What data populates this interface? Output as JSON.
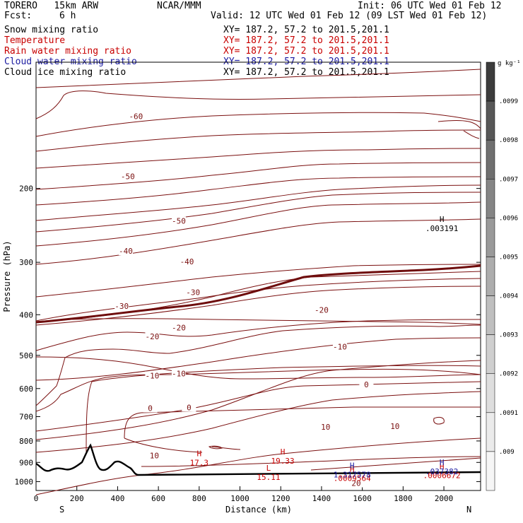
{
  "header": {
    "model": "TORERO   15km ARW",
    "org": "NCAR/MMM",
    "init": "Init: 06 UTC Wed 01 Feb 12",
    "fcst_label": "Fcst:",
    "fcst_value": "6 h",
    "valid": "Valid: 12 UTC Wed 01 Feb 12 (09 LST Wed 01 Feb 12)"
  },
  "fields": [
    {
      "name": "Snow mixing ratio",
      "xy": "XY= 187.2, 57.2 to 201.5,201.1",
      "color": "#000000"
    },
    {
      "name": "Temperature",
      "xy": "XY= 187.2, 57.2 to 201.5,201.1",
      "color": "#c80000"
    },
    {
      "name": "Rain water mixing ratio",
      "xy": "XY= 187.2, 57.2 to 201.5,201.1",
      "color": "#c80000"
    },
    {
      "name": "Cloud water mixing ratio",
      "xy": "XY= 187.2, 57.2 to 201.5,201.1",
      "color": "#1a1aa0"
    },
    {
      "name": "Cloud ice mixing ratio",
      "xy": "XY= 187.2, 57.2 to 201.5,201.1",
      "color": "#000000"
    }
  ],
  "chart_data": {
    "type": "contour-cross-section",
    "xlabel": "Distance (km)",
    "ylabel": "Pressure (hPa)",
    "xlim": [
      0,
      2180
    ],
    "ylim": [
      1050,
      100
    ],
    "x_ticks": [
      0,
      200,
      400,
      600,
      800,
      1000,
      1200,
      1400,
      1600,
      1800,
      2000
    ],
    "y_ticks": [
      200,
      300,
      400,
      500,
      600,
      700,
      800,
      900,
      1000
    ],
    "x_end_labels": {
      "left": "S",
      "right": "N"
    },
    "colorbar": {
      "units": "g kg⁻¹",
      "levels": [
        ".0099",
        ".0098",
        ".0097",
        ".0096",
        ".0095",
        ".0094",
        ".0093",
        ".0092",
        ".0091",
        ".009"
      ],
      "colors": [
        "#3c3c3c",
        "#575757",
        "#6f6f6f",
        "#858585",
        "#9a9a9a",
        "#adadad",
        "#bfbfbf",
        "#cfcfcf",
        "#dedede",
        "#ebebeb",
        "#f6f6f6"
      ]
    },
    "temperature_contour_labels": [
      "-60",
      "-50",
      "-50",
      "-40",
      "-40",
      "-30",
      "-30",
      "-20",
      "-20",
      "-20",
      "-10",
      "-10",
      "-10",
      "0",
      "0",
      "0",
      "10",
      "10",
      "10",
      "20"
    ],
    "contour_label_points": [
      {
        "text": "-60",
        "x": 490,
        "p": 135
      },
      {
        "text": "-50",
        "x": 700,
        "p": 240
      },
      {
        "text": "-50",
        "x": 450,
        "p": 188
      },
      {
        "text": "-40",
        "x": 440,
        "p": 283
      },
      {
        "text": "-40",
        "x": 740,
        "p": 300
      },
      {
        "text": "-30",
        "x": 420,
        "p": 383
      },
      {
        "text": "-30",
        "x": 770,
        "p": 355
      },
      {
        "text": "-20",
        "x": 570,
        "p": 452
      },
      {
        "text": "-20",
        "x": 700,
        "p": 431
      },
      {
        "text": "-20",
        "x": 1400,
        "p": 391
      },
      {
        "text": "-10",
        "x": 570,
        "p": 561
      },
      {
        "text": "-10",
        "x": 700,
        "p": 555
      },
      {
        "text": "-10",
        "x": 1490,
        "p": 479
      },
      {
        "text": "0",
        "x": 560,
        "p": 671
      },
      {
        "text": "0",
        "x": 750,
        "p": 668
      },
      {
        "text": "0",
        "x": 1620,
        "p": 589
      },
      {
        "text": "10",
        "x": 1420,
        "p": 743
      },
      {
        "text": "10",
        "x": 1760,
        "p": 741
      },
      {
        "text": "10",
        "x": 580,
        "p": 870
      },
      {
        "text": "20",
        "x": 1570,
        "p": 1012
      }
    ],
    "extrema": [
      {
        "type": "H",
        "value": "17.3",
        "x": 800,
        "p": 905,
        "color": "#c80000"
      },
      {
        "type": "H",
        "value": "19.33",
        "x": 1210,
        "p": 895,
        "color": "#c80000"
      },
      {
        "type": "L",
        "value": "15.11",
        "x": 1140,
        "p": 980,
        "color": "#c80000"
      },
      {
        "type": "H",
        "value": ".0009564",
        "x": 1550,
        "p": 985,
        "color": "#c80000"
      },
      {
        "type": "H",
        "value": ".0006672",
        "x": 1990,
        "p": 970,
        "color": "#c80000"
      },
      {
        "type": "H",
        "value": "1.317578",
        "x": 1550,
        "p": 966,
        "color": "#1a1aa0"
      },
      {
        "type": "H",
        "value": ".037382",
        "x": 1990,
        "p": 950,
        "color": "#1a1aa0"
      },
      {
        "type": "H",
        "value": ".003191",
        "x": 1990,
        "p": 250,
        "color": "#000000"
      }
    ]
  }
}
